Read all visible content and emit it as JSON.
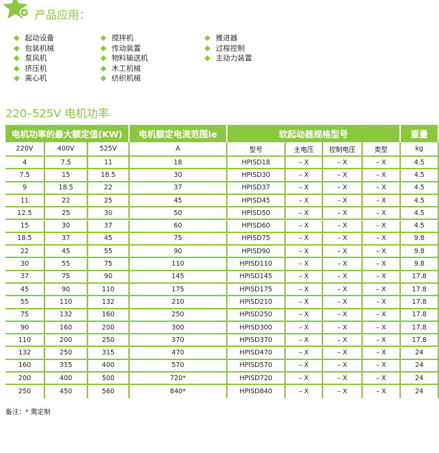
{
  "section_title": "产品应用：",
  "accent_color": "#8dc63f",
  "applications": [
    [
      "起动设备",
      "包装机械",
      "泵风机",
      "挤压机",
      "离心机"
    ],
    [
      "搅拌机",
      "传动装置",
      "物料输送机",
      "木工机械",
      "纺织机械"
    ],
    [
      "推进器",
      "过程控制",
      "主动力装置"
    ]
  ],
  "table_title": "220–525V 电机功率",
  "table": {
    "headers": [
      "电机功率的最大额定值(KW)",
      "电机额定电流范围Ie",
      "软起动器规格型号",
      "重量"
    ],
    "subheaders": [
      "220V",
      "400V",
      "525V",
      "A",
      "型号",
      "主电压",
      "控制电压",
      "类型",
      "kg"
    ],
    "rows": [
      [
        "4",
        "7.5",
        "11",
        "18",
        "HPISD18",
        "–  X",
        "–  X",
        "–  X",
        "4.5"
      ],
      [
        "7.5",
        "15",
        "18.5",
        "30",
        "HPISD30",
        "–  X",
        "–  X",
        "–  X",
        "4.5"
      ],
      [
        "9",
        "18.5",
        "22",
        "37",
        "HPISD37",
        "–  X",
        "–  X",
        "–  X",
        "4.5"
      ],
      [
        "11",
        "22",
        "25",
        "45",
        "HPISD45",
        "–  X",
        "–  X",
        "–  X",
        "4.5"
      ],
      [
        "12.5",
        "25",
        "30",
        "50",
        "HPISD50",
        "–  X",
        "–  X",
        "–  X",
        "4.5"
      ],
      [
        "15",
        "30",
        "37",
        "60",
        "HPISD60",
        "–  X",
        "–  X",
        "–  X",
        "4.5"
      ],
      [
        "18.5",
        "37",
        "45",
        "75",
        "HPISD75",
        "–  X",
        "–  X",
        "–  X",
        "9.8"
      ],
      [
        "22",
        "45",
        "55",
        "90",
        "HPISD90",
        "–  X",
        "–  X",
        "–  X",
        "9.8"
      ],
      [
        "30",
        "55",
        "75",
        "110",
        "HPISD110",
        "–  X",
        "–  X",
        "–  X",
        "9.8"
      ],
      [
        "37",
        "75",
        "90",
        "145",
        "HPISD145",
        "–  X",
        "–  X",
        "–  X",
        "17.8"
      ],
      [
        "45",
        "90",
        "110",
        "175",
        "HPISD175",
        "–  X",
        "–  X",
        "–  X",
        "17.8"
      ],
      [
        "55",
        "110",
        "132",
        "210",
        "HPISD210",
        "–  X",
        "–  X",
        "–  X",
        "17.8"
      ],
      [
        "75",
        "132",
        "160",
        "250",
        "HPISD250",
        "–  X",
        "–  X",
        "–  X",
        "17.8"
      ],
      [
        "90",
        "160",
        "200",
        "300",
        "HPISD300",
        "–  X",
        "–  X",
        "–  X",
        "17.8"
      ],
      [
        "110",
        "200",
        "250",
        "370",
        "HPISD370",
        "–  X",
        "–  X",
        "–  X",
        "17.8"
      ],
      [
        "132",
        "250",
        "315",
        "470",
        "HPISD470",
        "–  X",
        "–  X",
        "–  X",
        "24"
      ],
      [
        "160",
        "315",
        "400",
        "570",
        "HPISD570",
        "–  X",
        "–  X",
        "–  X",
        "24"
      ],
      [
        "200",
        "400",
        "500",
        "720*",
        "HPISD720",
        "–  X",
        "–  X",
        "–  X",
        "24"
      ],
      [
        "250",
        "450",
        "560",
        "840*",
        "HPISD840",
        "–  X",
        "–  X",
        "–  X",
        "24"
      ]
    ]
  },
  "note": "备注：* 需定制"
}
